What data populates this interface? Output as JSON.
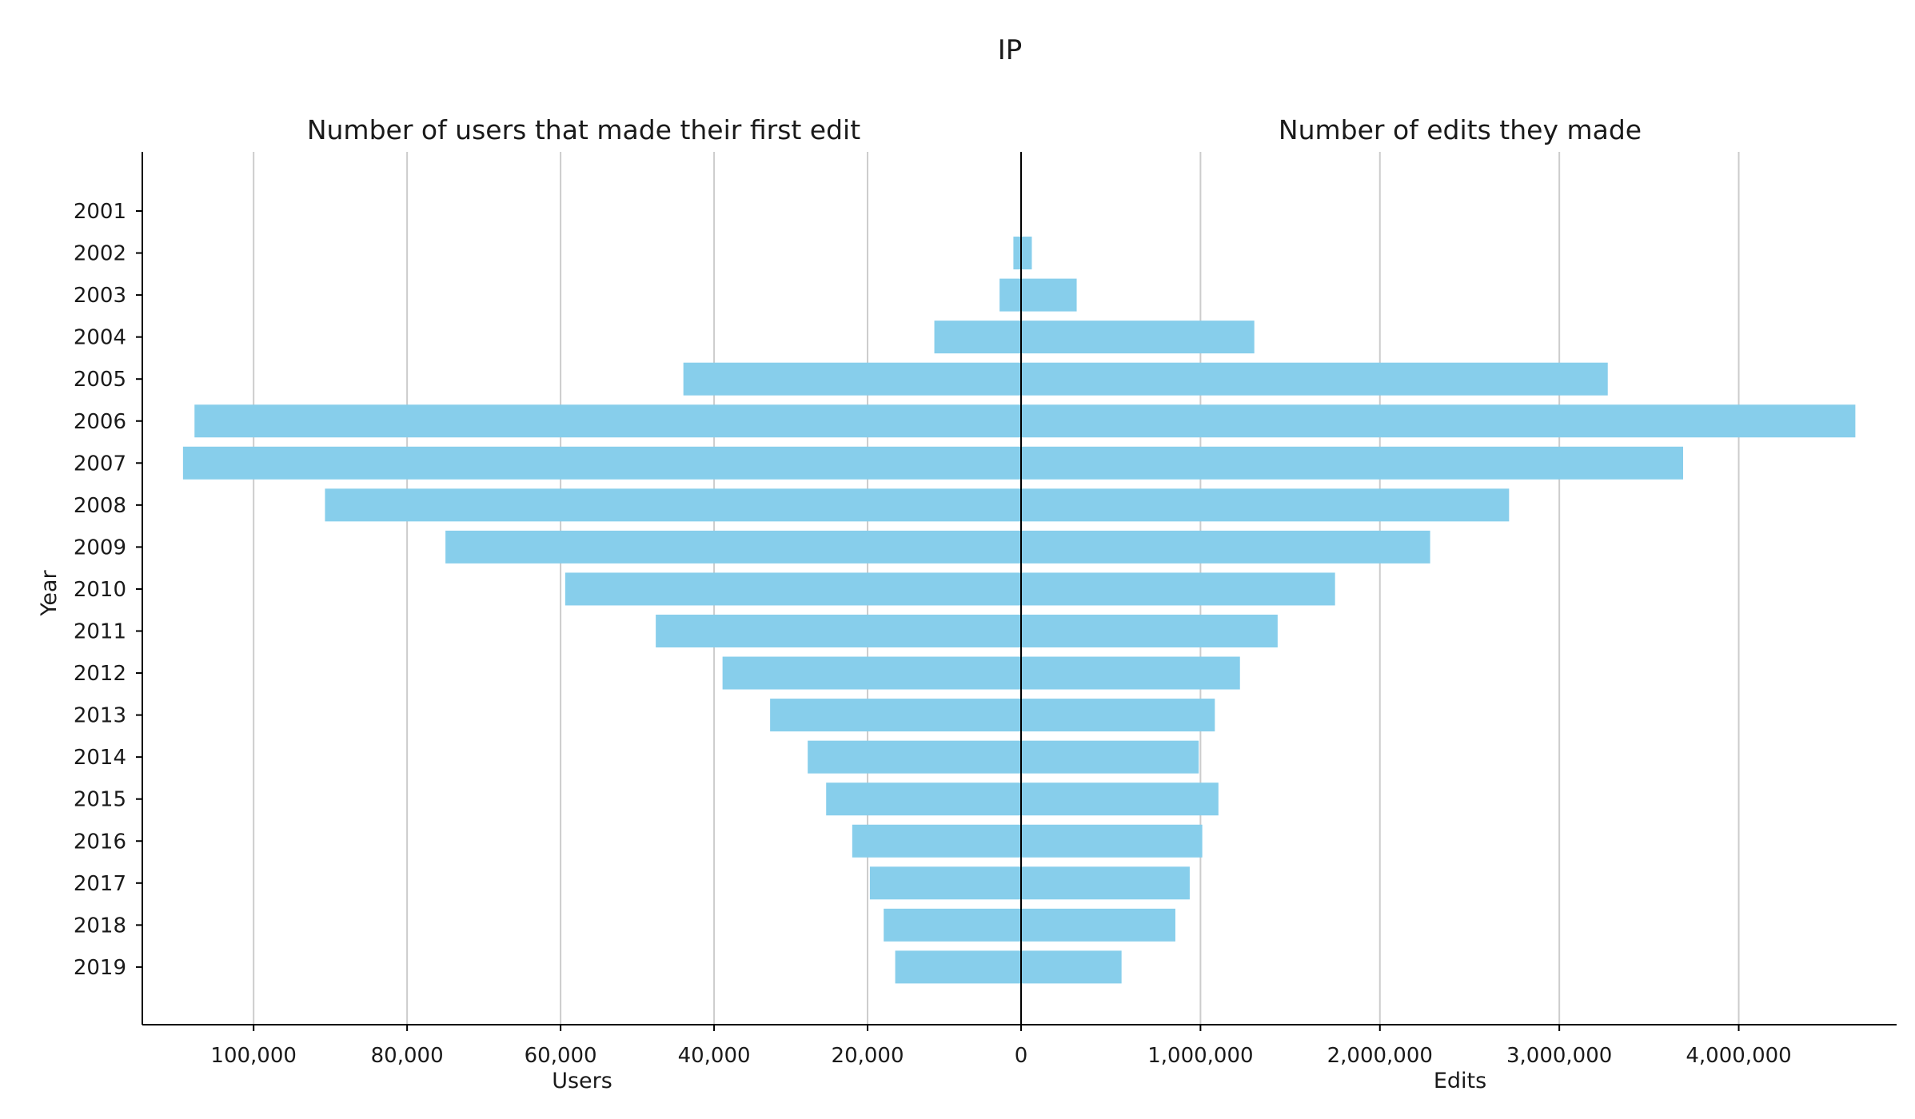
{
  "chart_data": {
    "type": "bar",
    "title": "IP",
    "left_title": "Number of users that made their first edit",
    "right_title": "Number of edits they made",
    "ylabel": "Year",
    "left_xlabel": "Users",
    "right_xlabel": "Edits",
    "bar_color": "#87ceeb",
    "grid": true,
    "categories": [
      "2001",
      "2002",
      "2003",
      "2004",
      "2005",
      "2006",
      "2007",
      "2008",
      "2009",
      "2010",
      "2011",
      "2012",
      "2013",
      "2014",
      "2015",
      "2016",
      "2017",
      "2018",
      "2019"
    ],
    "series": [
      {
        "name": "Users",
        "side": "left",
        "values": [
          0,
          1000,
          2800,
          11300,
          44000,
          107700,
          109200,
          90700,
          75000,
          59400,
          47600,
          38900,
          32700,
          27800,
          25400,
          22000,
          19700,
          17900,
          16400
        ]
      },
      {
        "name": "Edits",
        "side": "right",
        "values": [
          0,
          60000,
          310000,
          1300000,
          3270000,
          4650000,
          3690000,
          2720000,
          2280000,
          1750000,
          1430000,
          1220000,
          1080000,
          990000,
          1100000,
          1010000,
          940000,
          860000,
          560000
        ]
      }
    ],
    "left_ticks": [
      "100,000",
      "80,000",
      "60,000",
      "40,000",
      "20,000",
      "0"
    ],
    "left_tick_values": [
      100000,
      80000,
      60000,
      40000,
      20000,
      0
    ],
    "right_ticks": [
      "1,000,000",
      "2,000,000",
      "3,000,000",
      "4,000,000"
    ],
    "right_tick_values": [
      1000000,
      2000000,
      3000000,
      4000000
    ],
    "left_xlim": [
      0,
      114500
    ],
    "right_xlim": [
      0,
      4880000
    ]
  }
}
